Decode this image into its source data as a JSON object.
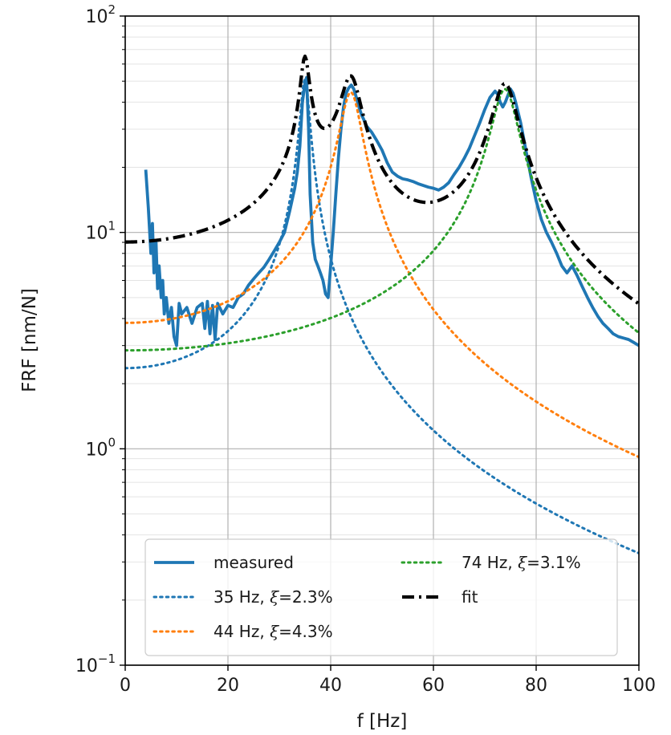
{
  "chart_data": {
    "type": "line",
    "xlabel": "f [Hz]",
    "ylabel": "FRF [nm/N]",
    "xlim": [
      0,
      100
    ],
    "ylim": [
      0.1,
      100
    ],
    "yscale": "log",
    "grid": true,
    "legend_placement": "lower-center",
    "x_ticks": [
      {
        "value": 0,
        "label": "0"
      },
      {
        "value": 20,
        "label": "20"
      },
      {
        "value": 40,
        "label": "40"
      },
      {
        "value": 60,
        "label": "60"
      },
      {
        "value": 80,
        "label": "80"
      },
      {
        "value": 100,
        "label": "100"
      }
    ],
    "y_ticks": [
      {
        "value": 0.1,
        "base": "10",
        "exp": "−1"
      },
      {
        "value": 1,
        "base": "10",
        "exp": "0"
      },
      {
        "value": 10,
        "base": "10",
        "exp": "1"
      },
      {
        "value": 100,
        "base": "10",
        "exp": "2"
      }
    ],
    "series": [
      {
        "name": "measured",
        "color": "#1f77b4",
        "style": "solid",
        "x": [
          4,
          4.5,
          5,
          5.3,
          5.6,
          6,
          6.3,
          6.6,
          7,
          7.3,
          7.6,
          8,
          8.5,
          9,
          9.5,
          10,
          10.5,
          11,
          12,
          13,
          14,
          15,
          15.5,
          16,
          16.5,
          17,
          17.5,
          18,
          19,
          20,
          21,
          22,
          23,
          24,
          25,
          26,
          27,
          28,
          29,
          30,
          31,
          32,
          33,
          33.5,
          34,
          34.5,
          35,
          35.3,
          35.7,
          36,
          36.5,
          37,
          37.5,
          38,
          38.5,
          39,
          39.5,
          40,
          40.5,
          41,
          41.5,
          42,
          42.5,
          43,
          43.5,
          44,
          44.5,
          45,
          45.5,
          46,
          46.5,
          47,
          48,
          49,
          50,
          51,
          52,
          53,
          54,
          55,
          56,
          57,
          58,
          59,
          60,
          61,
          62,
          63,
          64,
          65,
          66,
          67,
          68,
          69,
          70,
          71,
          72,
          72.5,
          73,
          73.5,
          74,
          74.5,
          75,
          75.5,
          76,
          77,
          78,
          79,
          80,
          81,
          82,
          83,
          84,
          85,
          86,
          87,
          88,
          89,
          90,
          91,
          92,
          93,
          94,
          95,
          96,
          97,
          98,
          99,
          100
        ],
        "y": [
          19.5,
          13,
          8,
          11,
          6.5,
          9,
          5.5,
          7,
          5,
          6,
          4.2,
          5,
          3.8,
          4.5,
          3.3,
          3,
          4.7,
          4.2,
          4.5,
          3.8,
          4.5,
          4.7,
          3.6,
          4.8,
          3.4,
          4.6,
          3.2,
          4.7,
          4.2,
          4.6,
          4.5,
          5,
          5.2,
          5.7,
          6.1,
          6.5,
          6.9,
          7.5,
          8.2,
          9,
          10,
          12.5,
          16,
          19,
          25,
          40,
          49,
          52,
          30,
          15,
          9,
          7.5,
          7,
          6.5,
          6,
          5.2,
          5,
          7,
          10,
          15,
          22,
          30,
          38,
          44,
          46.5,
          48,
          46,
          42,
          38,
          35,
          33,
          31,
          29,
          26.5,
          24,
          21,
          19,
          18.2,
          17.7,
          17.5,
          17.2,
          16.8,
          16.5,
          16.2,
          16,
          15.7,
          16.2,
          17,
          18.5,
          20,
          22,
          24.5,
          28,
          32,
          37,
          42,
          45,
          43.5,
          40,
          38,
          40,
          43,
          46,
          44,
          40,
          32,
          24,
          18,
          14,
          11.5,
          10,
          9,
          8,
          7,
          6.5,
          7,
          6.3,
          5.6,
          5,
          4.5,
          4.1,
          3.8,
          3.6,
          3.4,
          3.3,
          3.25,
          3.2,
          3.1,
          3.0
        ]
      },
      {
        "name": "35 Hz, ξ=2.3%",
        "color": "#1f77b4",
        "style": "dotted",
        "fn": {
          "fn_hz": 35,
          "zeta": 0.023,
          "a": 2.36
        }
      },
      {
        "name": "44 Hz, ξ=4.3%",
        "color": "#ff7f0e",
        "style": "dotted",
        "fn": {
          "fn_hz": 44,
          "zeta": 0.043,
          "a": 3.82
        }
      },
      {
        "name": "74 Hz, ξ=3.1%",
        "color": "#2ca02c",
        "style": "dotted",
        "fn": {
          "fn_hz": 74,
          "zeta": 0.031,
          "a": 2.85
        }
      },
      {
        "name": "fit",
        "color": "#000000",
        "style": "dashdot",
        "sum_of": [
          1,
          2,
          3
        ]
      }
    ],
    "legend": {
      "col1": [
        {
          "label": "measured",
          "series_index": 0
        },
        {
          "label": "35 Hz, ",
          "xi_value": "=2.3%",
          "series_index": 1
        },
        {
          "label": "44 Hz, ",
          "xi_value": "=4.3%",
          "series_index": 2
        }
      ],
      "col2": [
        {
          "label": "74 Hz, ",
          "xi_value": "=3.1%",
          "series_index": 3
        },
        {
          "label": "fit",
          "series_index": 4
        }
      ]
    }
  }
}
